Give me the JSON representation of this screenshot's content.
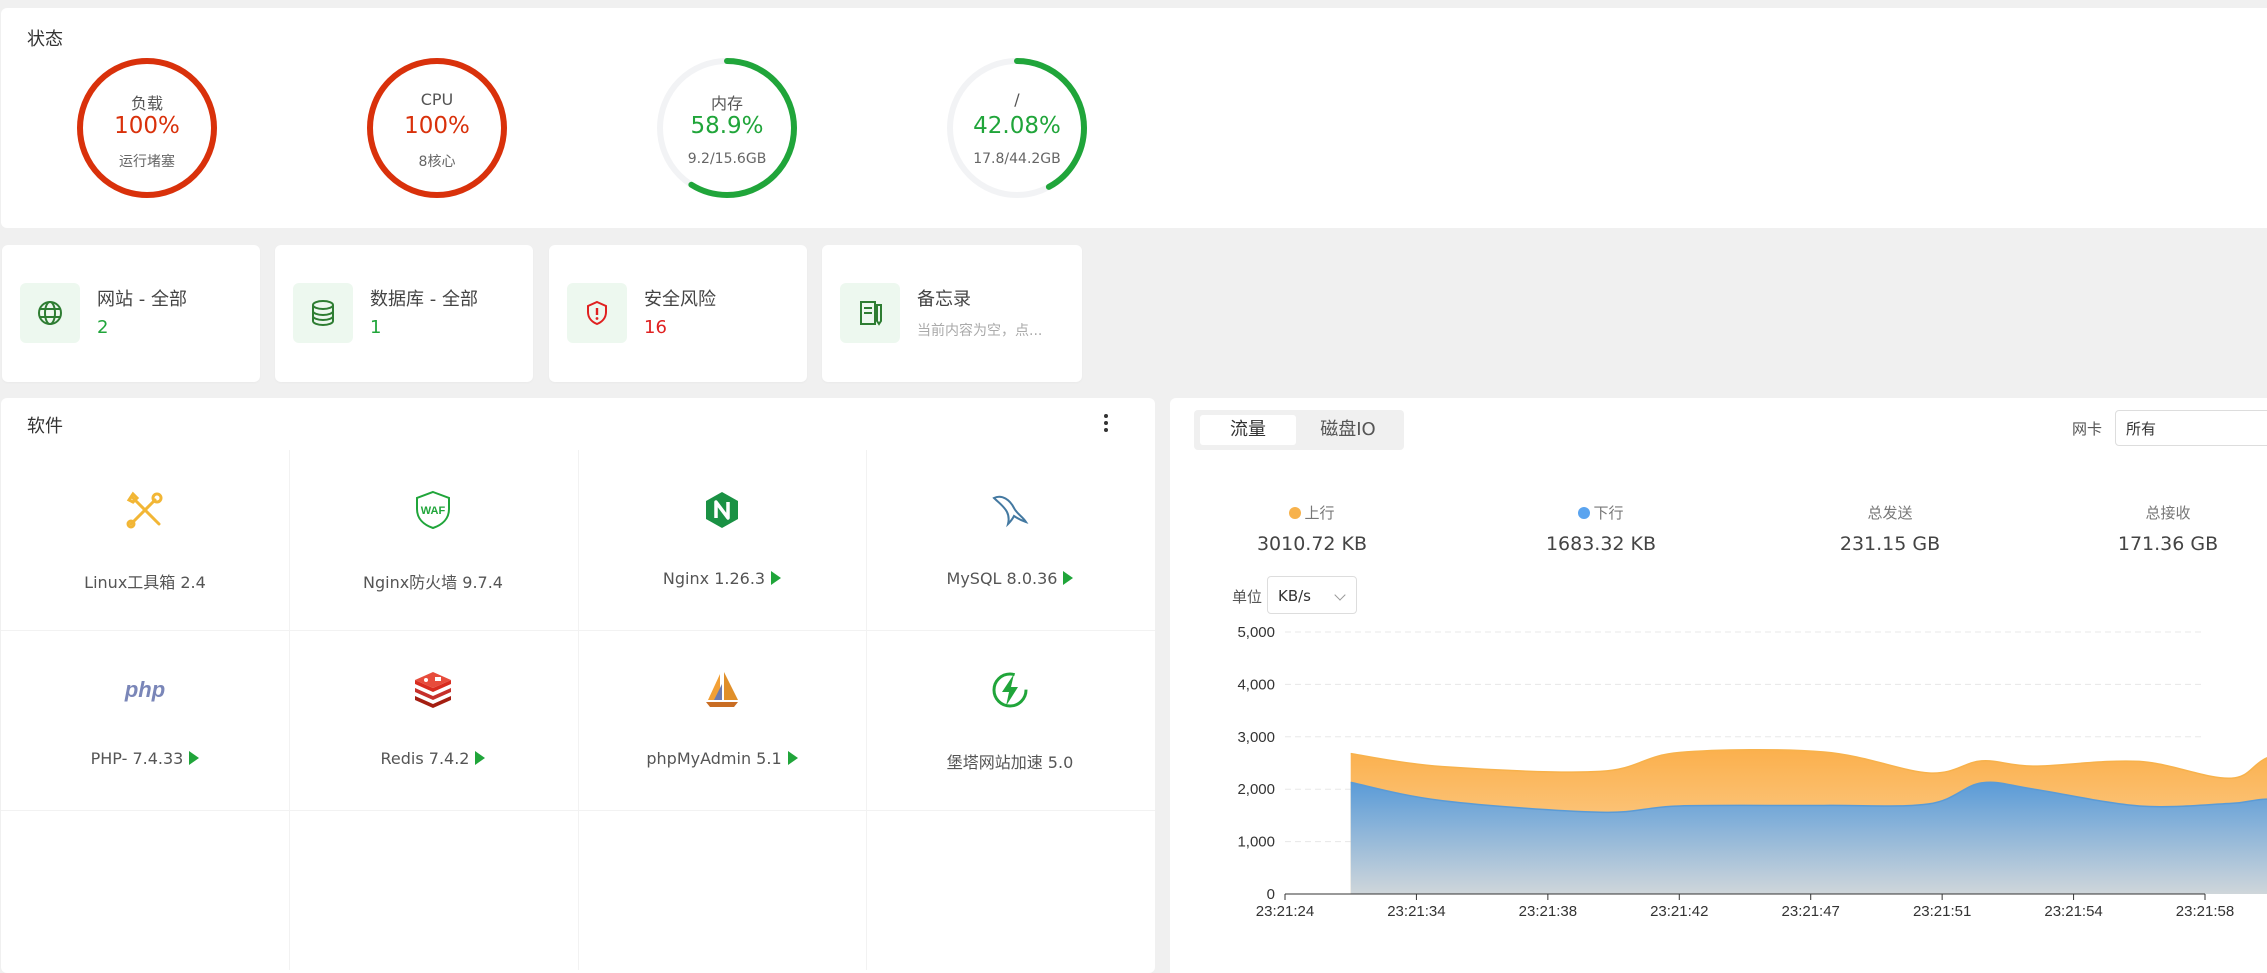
{
  "status": {
    "title": "状态",
    "gauges": [
      {
        "label": "负载",
        "value": "100%",
        "sub": "运行堵塞",
        "percent": 100,
        "color": "#d9310b"
      },
      {
        "label": "CPU",
        "value": "100%",
        "sub": "8核心",
        "percent": 100,
        "color": "#d9310b"
      },
      {
        "label": "内存",
        "value": "58.9%",
        "sub": "9.2/15.6GB",
        "percent": 58.9,
        "color": "#20a53a"
      },
      {
        "label": "/",
        "value": "42.08%",
        "sub": "17.8/44.2GB",
        "percent": 42.08,
        "color": "#20a53a"
      }
    ]
  },
  "overview": {
    "website": {
      "label": "网站 - 全部",
      "value": "2",
      "icon": "globe-icon"
    },
    "database": {
      "label": "数据库 - 全部",
      "value": "1",
      "icon": "database-icon"
    },
    "security": {
      "label": "安全风险",
      "value": "16",
      "icon": "shield-alert-icon"
    },
    "memo": {
      "label": "备忘录",
      "sub": "当前内容为空，点...",
      "icon": "memo-icon"
    }
  },
  "software": {
    "title": "软件",
    "items": [
      {
        "name": "Linux工具箱 2.4",
        "icon": "tools-icon",
        "running": false
      },
      {
        "name": "Nginx防火墙 9.7.4",
        "icon": "waf-shield-icon",
        "running": false
      },
      {
        "name": "Nginx 1.26.3",
        "icon": "nginx-icon",
        "running": true
      },
      {
        "name": "MySQL 8.0.36",
        "icon": "mysql-dolphin-icon",
        "running": true
      },
      {
        "name": "PHP- 7.4.33",
        "icon": "php-icon",
        "running": true
      },
      {
        "name": "Redis 7.4.2",
        "icon": "redis-icon",
        "running": true
      },
      {
        "name": "phpMyAdmin 5.1",
        "icon": "phpmyadmin-sailboat-icon",
        "running": true
      },
      {
        "name": "堡塔网站加速 5.0",
        "icon": "lightning-icon",
        "running": false
      }
    ]
  },
  "traffic": {
    "tabs": [
      "流量",
      "磁盘IO"
    ],
    "active_tab": "流量",
    "nic_label": "网卡",
    "nic_value": "所有",
    "stats": {
      "up_label": "上行",
      "up_value": "3010.72 KB",
      "down_label": "下行",
      "down_value": "1683.32 KB",
      "sent_label": "总发送",
      "sent_value": "231.15 GB",
      "recv_label": "总接收",
      "recv_value": "171.36 GB"
    },
    "unit_label": "单位",
    "unit_value": "KB/s"
  },
  "colors": {
    "up": "#f7b24c",
    "down": "#5ba4ef",
    "red": "#d9310b",
    "green": "#20a53a"
  },
  "chart_data": {
    "type": "area",
    "ylim": [
      0,
      5000
    ],
    "y_ticks": [
      "5,000",
      "4,000",
      "3,000",
      "2,000",
      "1,000",
      "0"
    ],
    "x_ticks": [
      "23:21:24",
      "23:21:34",
      "23:21:38",
      "23:21:42",
      "23:21:47",
      "23:21:51",
      "23:21:54",
      "23:21:58"
    ],
    "stacked": true,
    "series": [
      {
        "name": "上行",
        "color": "#f7b24c",
        "values": [
          550,
          650,
          780,
          1020,
          1020,
          590,
          420,
          440,
          850,
          480,
          880,
          1120
        ]
      },
      {
        "name": "下行",
        "color": "#5ba4ef",
        "values": [
          2130,
          1780,
          1560,
          1680,
          1690,
          1720,
          2120,
          2000,
          1680,
          1730,
          1800,
          1480
        ]
      }
    ],
    "x_points": [
      0.5,
      1.2,
      2.4,
      3.0,
      4.1,
      4.9,
      5.3,
      5.7,
      6.5,
      7.2,
      7.6,
      8.7
    ],
    "grid": true
  }
}
